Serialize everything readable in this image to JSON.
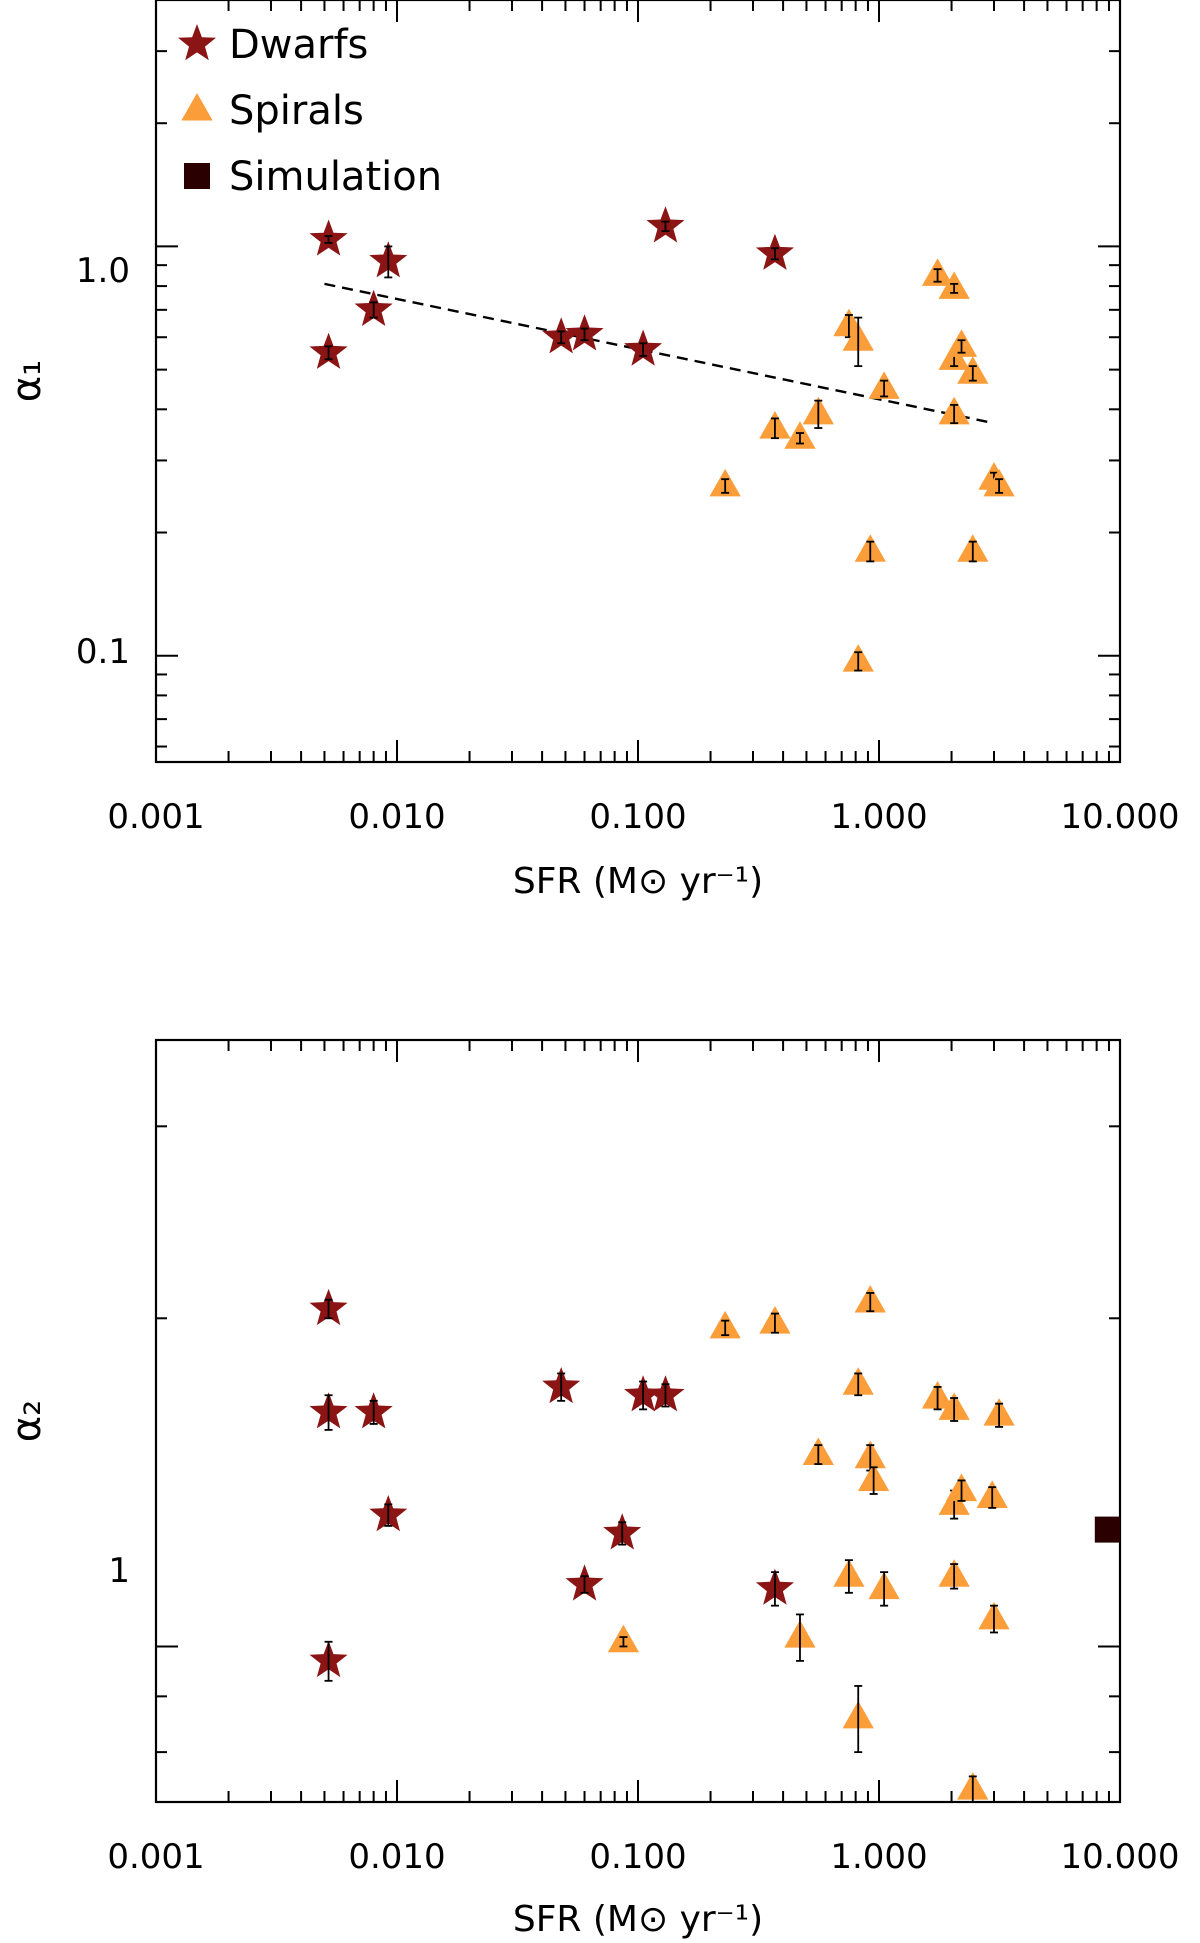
{
  "colors": {
    "dwarfs": "#8b1414",
    "spirals": "#fb9e3a",
    "simulation": "#2a0000",
    "axis": "#000000"
  },
  "legend": [
    {
      "label": "Dwarfs",
      "marker": "star"
    },
    {
      "label": "Spirals",
      "marker": "triangle"
    },
    {
      "label": "Simulation",
      "marker": "square"
    }
  ],
  "chart_data": [
    {
      "type": "scatter",
      "title": "",
      "xlabel": "SFR (M⊙ yr⁻¹)",
      "ylabel": "α₁",
      "xscale": "log",
      "yscale": "log",
      "xlim": [
        0.001,
        10.0
      ],
      "ylim": [
        0.055,
        4.0
      ],
      "xticks": [
        "0.001",
        "0.010",
        "0.100",
        "1.000",
        "10.000"
      ],
      "yticks": [
        "1.0",
        "0.1"
      ],
      "legend_position": "top-left",
      "series": [
        {
          "name": "Dwarfs",
          "marker": "star",
          "points": [
            {
              "x": 0.0052,
              "y": 1.04,
              "err": 0.02
            },
            {
              "x": 0.0052,
              "y": 0.55,
              "err": 0.02
            },
            {
              "x": 0.008,
              "y": 0.7,
              "err": 0.03
            },
            {
              "x": 0.0092,
              "y": 0.92,
              "err": 0.08
            },
            {
              "x": 0.048,
              "y": 0.6,
              "err": 0.02
            },
            {
              "x": 0.06,
              "y": 0.61,
              "err": 0.02
            },
            {
              "x": 0.105,
              "y": 0.56,
              "err": 0.02
            },
            {
              "x": 0.13,
              "y": 1.12,
              "err": 0.03
            },
            {
              "x": 0.37,
              "y": 0.96,
              "err": 0.03
            }
          ]
        },
        {
          "name": "Spirals",
          "marker": "triangle",
          "points": [
            {
              "x": 0.23,
              "y": 0.26,
              "err": 0.01
            },
            {
              "x": 0.37,
              "y": 0.36,
              "err": 0.02
            },
            {
              "x": 0.47,
              "y": 0.34,
              "err": 0.01
            },
            {
              "x": 0.56,
              "y": 0.39,
              "err": 0.03
            },
            {
              "x": 0.75,
              "y": 0.64,
              "err": 0.04
            },
            {
              "x": 0.82,
              "y": 0.59,
              "err": 0.08
            },
            {
              "x": 0.82,
              "y": 0.097,
              "err": 0.005
            },
            {
              "x": 0.92,
              "y": 0.18,
              "err": 0.01
            },
            {
              "x": 1.05,
              "y": 0.45,
              "err": 0.02
            },
            {
              "x": 1.75,
              "y": 0.85,
              "err": 0.03
            },
            {
              "x": 2.05,
              "y": 0.79,
              "err": 0.02
            },
            {
              "x": 2.05,
              "y": 0.53,
              "err": 0.02
            },
            {
              "x": 2.05,
              "y": 0.39,
              "err": 0.02
            },
            {
              "x": 2.2,
              "y": 0.57,
              "err": 0.02
            },
            {
              "x": 2.45,
              "y": 0.49,
              "err": 0.02
            },
            {
              "x": 2.45,
              "y": 0.18,
              "err": 0.01
            },
            {
              "x": 3.0,
              "y": 0.27,
              "err": 0.01
            },
            {
              "x": 3.15,
              "y": 0.26,
              "err": 0.01
            }
          ]
        }
      ],
      "fit_line": {
        "style": "dashed",
        "x": [
          0.005,
          3.0
        ],
        "y": [
          0.81,
          0.37
        ]
      }
    },
    {
      "type": "scatter",
      "title": "",
      "xlabel": "SFR (M⊙ yr⁻¹)",
      "ylabel": "α₂",
      "xscale": "log",
      "yscale": "log",
      "xlim": [
        0.001,
        10.0
      ],
      "ylim": [
        0.72,
        3.6
      ],
      "xticks": [
        "0.001",
        "0.010",
        "0.100",
        "1.000",
        "10.000"
      ],
      "yticks": [
        "1"
      ],
      "series": [
        {
          "name": "Dwarfs",
          "marker": "star",
          "points": [
            {
              "x": 0.0052,
              "y": 2.04,
              "err": 0.04
            },
            {
              "x": 0.0052,
              "y": 1.64,
              "err": 0.06
            },
            {
              "x": 0.0052,
              "y": 0.97,
              "err": 0.04
            },
            {
              "x": 0.008,
              "y": 1.64,
              "err": 0.04
            },
            {
              "x": 0.0092,
              "y": 1.32,
              "err": 0.03
            },
            {
              "x": 0.048,
              "y": 1.73,
              "err": 0.05
            },
            {
              "x": 0.06,
              "y": 1.14,
              "err": 0.02
            },
            {
              "x": 0.086,
              "y": 1.27,
              "err": 0.03
            },
            {
              "x": 0.105,
              "y": 1.7,
              "err": 0.05
            },
            {
              "x": 0.13,
              "y": 1.7,
              "err": 0.04
            },
            {
              "x": 0.37,
              "y": 1.13,
              "err": 0.04
            }
          ]
        },
        {
          "name": "Spirals",
          "marker": "triangle",
          "points": [
            {
              "x": 0.087,
              "y": 1.01,
              "err": 0.01
            },
            {
              "x": 0.23,
              "y": 1.96,
              "err": 0.03
            },
            {
              "x": 0.37,
              "y": 1.98,
              "err": 0.04
            },
            {
              "x": 0.47,
              "y": 1.02,
              "err": 0.05
            },
            {
              "x": 0.56,
              "y": 1.5,
              "err": 0.03
            },
            {
              "x": 0.75,
              "y": 1.16,
              "err": 0.04
            },
            {
              "x": 0.82,
              "y": 1.74,
              "err": 0.04
            },
            {
              "x": 0.82,
              "y": 0.86,
              "err": 0.06
            },
            {
              "x": 0.92,
              "y": 2.07,
              "err": 0.04
            },
            {
              "x": 0.92,
              "y": 1.49,
              "err": 0.04
            },
            {
              "x": 0.95,
              "y": 1.42,
              "err": 0.04
            },
            {
              "x": 1.05,
              "y": 1.13,
              "err": 0.04
            },
            {
              "x": 1.75,
              "y": 1.69,
              "err": 0.04
            },
            {
              "x": 2.05,
              "y": 1.65,
              "err": 0.04
            },
            {
              "x": 2.05,
              "y": 1.35,
              "err": 0.04
            },
            {
              "x": 2.05,
              "y": 1.16,
              "err": 0.03
            },
            {
              "x": 2.2,
              "y": 1.39,
              "err": 0.03
            },
            {
              "x": 2.45,
              "y": 0.74,
              "err": 0.02
            },
            {
              "x": 2.95,
              "y": 1.37,
              "err": 0.03
            },
            {
              "x": 3.0,
              "y": 1.06,
              "err": 0.03
            },
            {
              "x": 3.15,
              "y": 1.63,
              "err": 0.04
            }
          ]
        },
        {
          "name": "Simulation",
          "marker": "square",
          "points": [
            {
              "x": 8.9,
              "y": 1.28,
              "err": 0
            }
          ]
        }
      ]
    }
  ]
}
